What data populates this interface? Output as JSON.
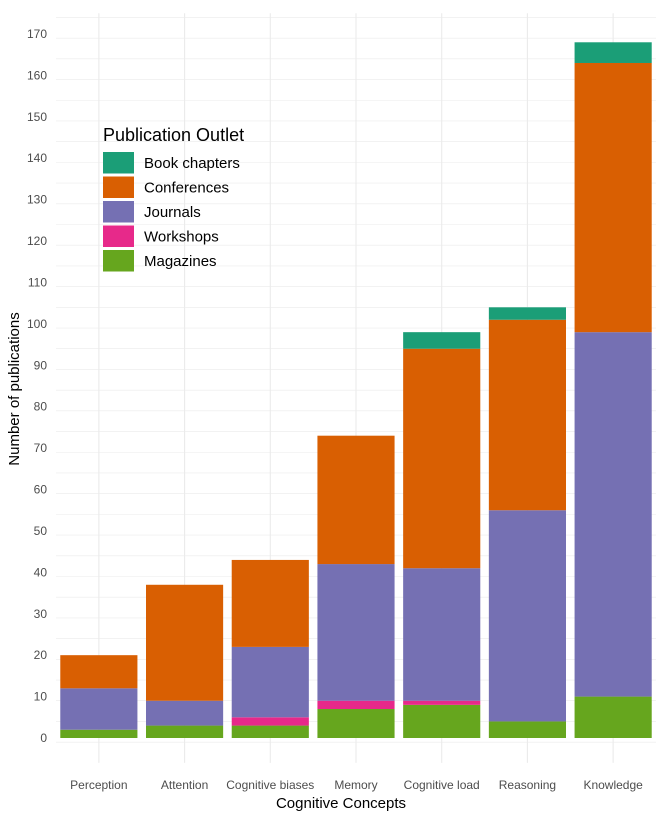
{
  "chart_data": {
    "type": "bar",
    "stacked": true,
    "title": "",
    "xlabel": "Cognitive Concepts",
    "ylabel": "Number of publications",
    "ylim": [
      -6,
      175
    ],
    "yticks": [
      0,
      10,
      20,
      30,
      40,
      50,
      60,
      70,
      80,
      90,
      100,
      110,
      120,
      130,
      140,
      150,
      160,
      170
    ],
    "grid": true,
    "categories": [
      "Perception",
      "Attention",
      "Cognitive biases",
      "Memory",
      "Cognitive load",
      "Reasoning",
      "Knowledge"
    ],
    "stack_order_bottom_to_top": [
      "Magazines",
      "Workshops",
      "Journals",
      "Conferences",
      "Book chapters"
    ],
    "series": [
      {
        "name": "Book chapters",
        "color": "#1b9e77",
        "values": [
          0,
          0,
          0,
          0,
          4,
          3,
          5
        ]
      },
      {
        "name": "Conferences",
        "color": "#d95f02",
        "values": [
          8,
          28,
          21,
          31,
          53,
          46,
          65
        ]
      },
      {
        "name": "Journals",
        "color": "#7570b3",
        "values": [
          10,
          6,
          17,
          33,
          32,
          51,
          88
        ]
      },
      {
        "name": "Workshops",
        "color": "#e7298a",
        "values": [
          0,
          0,
          2,
          2,
          1,
          0,
          0
        ]
      },
      {
        "name": "Magazines",
        "color": "#66a61e",
        "values": [
          2,
          3,
          3,
          7,
          8,
          4,
          10
        ]
      }
    ],
    "legend": {
      "title": "Publication Outlet",
      "position": "top-left",
      "items": [
        "Book chapters",
        "Conferences",
        "Journals",
        "Workshops",
        "Magazines"
      ]
    }
  }
}
